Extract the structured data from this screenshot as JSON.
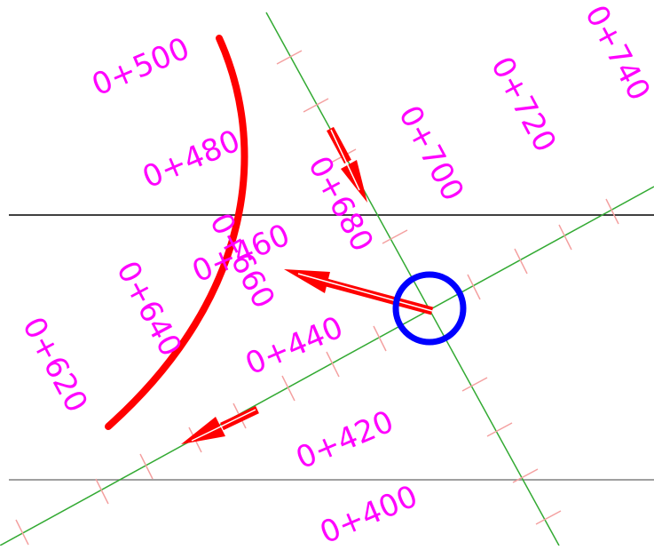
{
  "colors": {
    "background": "#ffffff",
    "alignment": "#33aa33",
    "tick": "#f4a0a0",
    "station_label": "#ff00ff",
    "boundary": "#000000",
    "boundary_lower": "#808080",
    "curve": "#ff0000",
    "arrow": "#ff0000",
    "intersection_marker": "#0000ff"
  },
  "alignment_a": {
    "stations": [
      "0+400",
      "0+420",
      "0+440",
      "0+460",
      "0+480",
      "0+500"
    ]
  },
  "alignment_b": {
    "stations": [
      "0+620",
      "0+640",
      "0+660",
      "0+680",
      "0+700",
      "0+720",
      "0+740"
    ]
  }
}
